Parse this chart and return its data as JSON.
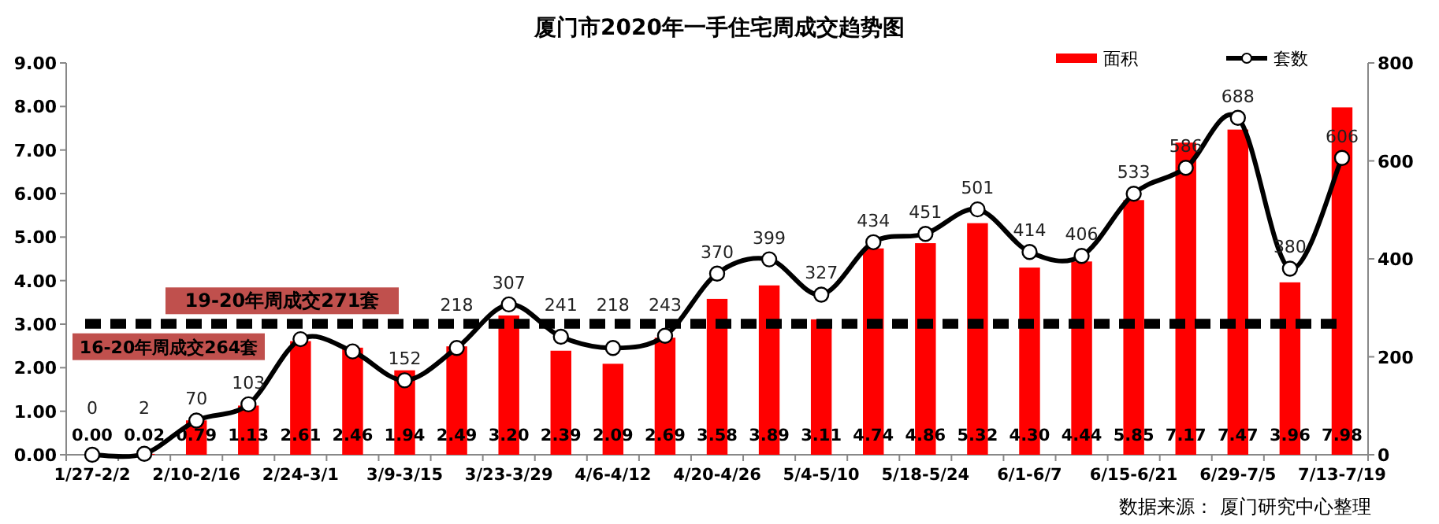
{
  "chart_data": {
    "type": "bar",
    "title": "厦门市2020年一手住宅周成交趋势图",
    "categories": [
      "1/27-2/2",
      null,
      "2/10-2/16",
      null,
      "2/24-3/1",
      null,
      "3/9-3/15",
      null,
      "3/23-3/29",
      null,
      "4/6-4/12",
      null,
      "4/20-4/26",
      null,
      "5/4-5/10",
      null,
      "5/18-5/24",
      null,
      "6/1-6/7",
      null,
      "6/15-6/21",
      null,
      "6/29-7/5",
      null,
      "7/13-7/19"
    ],
    "series": [
      {
        "name": "面积",
        "color": "#ff0000",
        "values": [
          0.0,
          0.02,
          0.79,
          1.13,
          2.61,
          2.46,
          1.94,
          2.49,
          3.2,
          2.39,
          2.09,
          2.69,
          3.58,
          3.89,
          3.11,
          4.74,
          4.86,
          5.32,
          4.3,
          4.44,
          5.85,
          7.17,
          7.47,
          3.96,
          7.98
        ],
        "value_labels": [
          "0.00",
          "0.02",
          "0.79",
          "1.13",
          "2.61",
          "2.46",
          "1.94",
          "2.49",
          "3.20",
          "2.39",
          "2.09",
          "2.69",
          "3.58",
          "3.89",
          "3.11",
          "4.74",
          "4.86",
          "5.32",
          "4.30",
          "4.44",
          "5.85",
          "7.17",
          "7.47",
          "3.96",
          "7.98"
        ]
      },
      {
        "name": "套数",
        "type": "line",
        "axis": "y2",
        "color": "#000000",
        "marker": "circle",
        "values": [
          0,
          2,
          70,
          103,
          236,
          211,
          152,
          218,
          307,
          241,
          218,
          243,
          370,
          399,
          327,
          434,
          451,
          501,
          414,
          406,
          533,
          586,
          688,
          380,
          606
        ],
        "value_labels": [
          "0",
          "2",
          "70",
          "103",
          null,
          null,
          "152",
          "218",
          "307",
          "241",
          "218",
          "243",
          "370",
          "399",
          "327",
          "434",
          "451",
          "501",
          "414",
          "406",
          "533",
          "586",
          "688",
          "380",
          "606"
        ]
      }
    ],
    "ylim": [
      0,
      9
    ],
    "yticks": [
      {
        "value": 0,
        "label": "0.00"
      },
      {
        "value": 1,
        "label": "1.00"
      },
      {
        "value": 2,
        "label": "2.00"
      },
      {
        "value": 3,
        "label": "3.00"
      },
      {
        "value": 4,
        "label": "4.00"
      },
      {
        "value": 5,
        "label": "5.00"
      },
      {
        "value": 6,
        "label": "6.00"
      },
      {
        "value": 7,
        "label": "7.00"
      },
      {
        "value": 8,
        "label": "8.00"
      },
      {
        "value": 9,
        "label": "9.00"
      }
    ],
    "y2lim": [
      0,
      800
    ],
    "y2ticks": [
      0,
      200,
      400,
      600,
      800
    ],
    "ref_lines": [
      {
        "axis": "y2",
        "value": 264,
        "label": "16-20年周成交264套",
        "color": "#000000",
        "line_style": "dashed"
      },
      {
        "axis": "y2",
        "value": 271,
        "label": "19-20年周成交271套",
        "color": "#000000",
        "line_style": "dashed"
      }
    ],
    "legend": "top right",
    "grid": false,
    "annotations": [
      "数据来源： 厦门研究中心整理"
    ]
  }
}
